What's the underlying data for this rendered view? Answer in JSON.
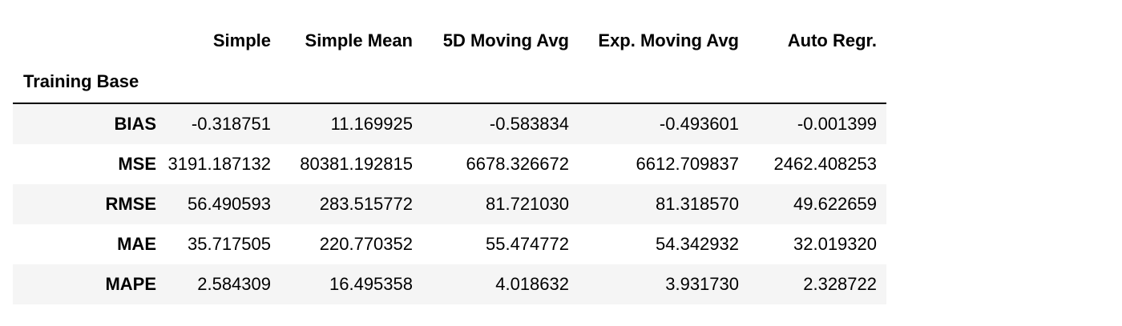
{
  "table": {
    "columns": [
      "Simple",
      "Simple Mean",
      "5D Moving Avg",
      "Exp. Moving Avg",
      "Auto Regr."
    ],
    "index_name": "Training Base",
    "rows": [
      {
        "label": "BIAS",
        "values": [
          "-0.318751",
          "11.169925",
          "-0.583834",
          "-0.493601",
          "-0.001399"
        ]
      },
      {
        "label": "MSE",
        "values": [
          "3191.187132",
          "80381.192815",
          "6678.326672",
          "6612.709837",
          "2462.408253"
        ]
      },
      {
        "label": "RMSE",
        "values": [
          "56.490593",
          "283.515772",
          "81.721030",
          "81.318570",
          "49.622659"
        ]
      },
      {
        "label": "MAE",
        "values": [
          "35.717505",
          "220.770352",
          "55.474772",
          "54.342932",
          "32.019320"
        ]
      },
      {
        "label": "MAPE",
        "values": [
          "2.584309",
          "16.495358",
          "4.018632",
          "3.931730",
          "2.328722"
        ]
      }
    ]
  },
  "colors": {
    "stripe": "#f5f5f5",
    "rule": "#000000"
  }
}
